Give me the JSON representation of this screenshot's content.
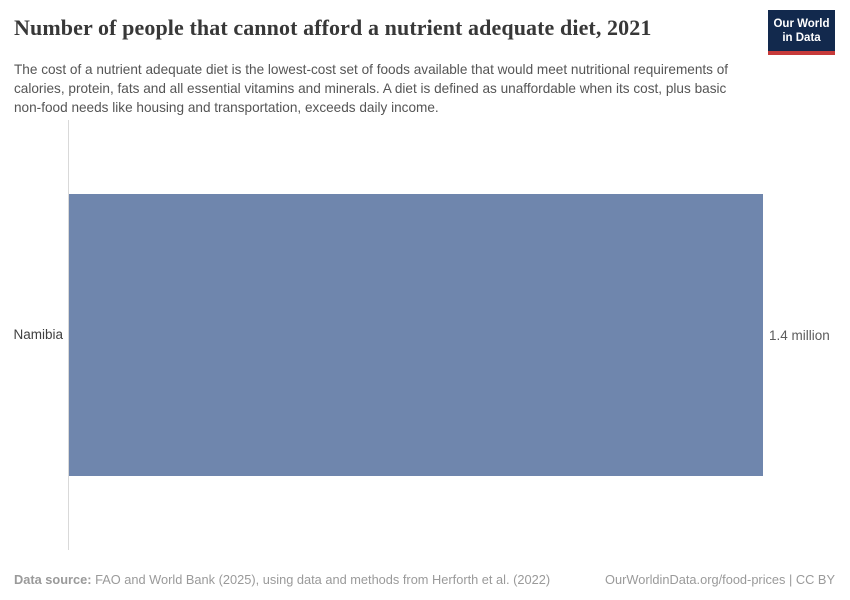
{
  "header": {
    "title": "Number of people that cannot afford a nutrient adequate diet, 2021",
    "subtitle": "The cost of a nutrient adequate diet is the lowest-cost set of foods available that would meet nutritional requirements of calories, protein, fats and all essential vitamins and minerals. A diet is defined as unaffordable when its cost, plus basic non-food needs like housing and transportation, exceeds daily income.",
    "logo": {
      "line1": "Our World",
      "line2": "in Data",
      "background_color": "#12294d",
      "accent_color": "#c73a3a"
    }
  },
  "chart_data": {
    "type": "bar",
    "orientation": "horizontal",
    "title": "Number of people that cannot afford a nutrient adequate diet, 2021",
    "categories": [
      "Namibia"
    ],
    "values": [
      1400000
    ],
    "value_labels": [
      "1.4 million"
    ],
    "xlim": [
      0,
      1400000
    ],
    "bar_color": "#6f86ad",
    "grid": false,
    "legend": "none"
  },
  "footer": {
    "datasource_label": "Data source:",
    "datasource_text": "FAO and World Bank (2025), using data and methods from Herforth et al. (2022)",
    "link_text": "OurWorldinData.org/food-prices | CC BY"
  }
}
